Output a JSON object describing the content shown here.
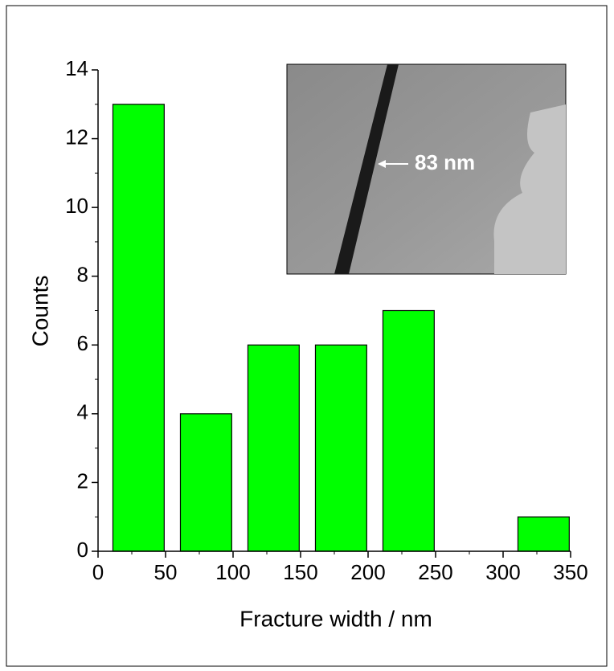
{
  "chart_data": {
    "type": "bar",
    "x": [
      30,
      80,
      130,
      180,
      230,
      330
    ],
    "values": [
      13,
      4,
      6,
      6,
      7,
      1
    ],
    "color": "#00ff00",
    "xlim": [
      0,
      350
    ],
    "xticks": [
      0,
      50,
      100,
      150,
      200,
      250,
      300,
      350
    ],
    "ylim": [
      0,
      14
    ],
    "yticks": [
      0,
      2,
      4,
      6,
      8,
      10,
      12,
      14
    ],
    "xlabel": "Fracture width / nm",
    "ylabel": "Counts",
    "annotation": "83 nm"
  }
}
